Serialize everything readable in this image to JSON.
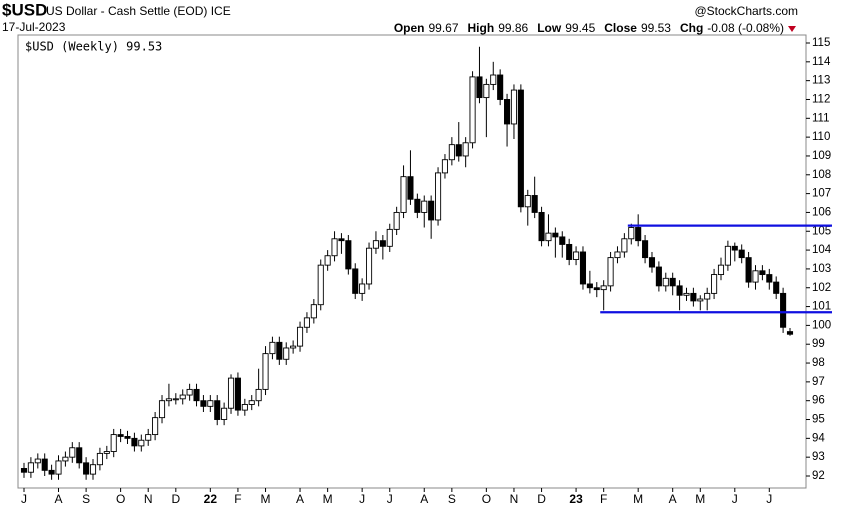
{
  "chart_data": {
    "type": "candlestick",
    "symbol": "$USD",
    "title": "US Dollar - Cash Settle (EOD) ICE",
    "source": "@StockCharts.com",
    "date": "17-Jul-2023",
    "header": [
      {
        "label": "Open",
        "value": "99.67"
      },
      {
        "label": "High",
        "value": "99.86"
      },
      {
        "label": "Low",
        "value": "99.45"
      },
      {
        "label": "Close",
        "value": "99.53"
      },
      {
        "label": "Chg",
        "value": "-0.08 (-0.08%)"
      }
    ],
    "legend": "$USD (Weekly) 99.53",
    "up_color": "#ffffff",
    "down_color": "#000000",
    "line_color": "#1010e0",
    "open": [
      92.4,
      92.2,
      92.7,
      92.9,
      92.3,
      92.1,
      92.8,
      93.0,
      93.5,
      92.7,
      92.1,
      92.6,
      93.2,
      93.3,
      94.2,
      94.1,
      94.0,
      93.6,
      93.9,
      94.2,
      95.1,
      96.0,
      96.1,
      96.1,
      96.3,
      96.6,
      96.0,
      95.7,
      96.0,
      95.0,
      95.6,
      97.2,
      95.5,
      95.8,
      96.0,
      96.6,
      98.5,
      99.1,
      98.2,
      98.8,
      98.9,
      99.9,
      100.4,
      101.1,
      103.2,
      103.7,
      104.6,
      104.5,
      103.0,
      101.7,
      102.2,
      104.1,
      104.5,
      104.2,
      105.1,
      106.0,
      107.9,
      106.7,
      106.0,
      106.6,
      105.6,
      108.1,
      108.8,
      109.6,
      109.0,
      109.7,
      113.2,
      112.1,
      112.8,
      113.3,
      112.0,
      110.7,
      112.5,
      106.3,
      106.9,
      106.0,
      104.5,
      104.9,
      104.7,
      104.3,
      103.5,
      103.9,
      102.2,
      102.0,
      101.9,
      102.1,
      103.6,
      103.9,
      104.6,
      105.2,
      104.5,
      103.6,
      103.1,
      102.1,
      102.5,
      102.1,
      101.6,
      101.7,
      101.3,
      101.4,
      101.7,
      102.7,
      103.2,
      104.2,
      104.0,
      103.6,
      102.3,
      102.9,
      102.7,
      102.3,
      101.7,
      99.67
    ],
    "high": [
      92.7,
      93.0,
      93.2,
      93.2,
      92.6,
      93.1,
      93.3,
      93.8,
      93.8,
      93.0,
      92.9,
      93.5,
      93.6,
      94.5,
      94.5,
      94.4,
      94.3,
      94.2,
      94.5,
      95.4,
      96.3,
      96.9,
      96.4,
      96.6,
      96.9,
      96.9,
      96.3,
      96.3,
      96.3,
      95.9,
      97.4,
      97.5,
      96.1,
      96.3,
      97.7,
      98.9,
      99.4,
      99.4,
      99.1,
      99.2,
      100.2,
      100.7,
      101.4,
      103.5,
      104.0,
      105.0,
      104.9,
      104.8,
      103.3,
      102.5,
      104.4,
      105.0,
      104.8,
      105.4,
      106.3,
      108.5,
      109.3,
      107.0,
      106.9,
      106.9,
      108.4,
      109.1,
      110.0,
      110.8,
      110.0,
      113.5,
      114.8,
      113.1,
      114.0,
      113.6,
      112.3,
      112.8,
      112.8,
      107.2,
      107.9,
      106.3,
      105.9,
      105.2,
      105.0,
      104.6,
      104.2,
      104.2,
      102.9,
      102.3,
      102.4,
      103.9,
      104.2,
      104.9,
      105.4,
      105.9,
      104.8,
      103.9,
      103.4,
      102.8,
      102.8,
      102.4,
      102.0,
      102.0,
      101.6,
      102.0,
      103.0,
      103.6,
      104.5,
      104.4,
      104.3,
      103.9,
      103.2,
      103.2,
      103.0,
      102.6,
      102.0,
      99.86
    ],
    "low": [
      91.9,
      91.9,
      92.4,
      92.0,
      91.8,
      91.8,
      92.5,
      92.7,
      92.4,
      91.8,
      91.8,
      92.3,
      92.9,
      93.0,
      93.8,
      93.7,
      93.3,
      93.3,
      93.6,
      93.9,
      94.8,
      95.7,
      95.8,
      95.8,
      96.0,
      95.7,
      95.4,
      95.4,
      94.7,
      94.7,
      95.3,
      95.2,
      95.2,
      95.5,
      95.7,
      96.3,
      98.2,
      97.9,
      97.9,
      98.5,
      98.6,
      99.6,
      100.1,
      100.8,
      102.9,
      103.4,
      103.8,
      102.7,
      101.4,
      101.3,
      101.9,
      103.8,
      103.5,
      103.9,
      104.8,
      105.7,
      106.4,
      105.7,
      105.2,
      104.6,
      105.3,
      107.8,
      108.5,
      108.7,
      108.4,
      109.4,
      111.8,
      110.0,
      112.5,
      111.7,
      109.5,
      109.9,
      106.0,
      105.3,
      105.7,
      104.2,
      104.2,
      103.6,
      103.6,
      103.2,
      103.2,
      101.9,
      101.7,
      101.5,
      100.8,
      101.8,
      103.3,
      103.6,
      104.3,
      104.2,
      103.3,
      102.8,
      101.8,
      101.8,
      101.6,
      100.8,
      101.3,
      101.0,
      100.8,
      100.8,
      101.4,
      102.4,
      102.9,
      103.4,
      103.3,
      102.0,
      101.9,
      102.4,
      101.9,
      101.4,
      99.6,
      99.45
    ],
    "close": [
      92.2,
      92.7,
      92.9,
      92.3,
      92.1,
      92.8,
      93.0,
      93.5,
      92.7,
      92.1,
      92.6,
      93.2,
      93.3,
      94.2,
      94.1,
      94.0,
      93.6,
      93.9,
      94.2,
      95.1,
      96.0,
      96.1,
      96.1,
      96.3,
      96.6,
      96.0,
      95.7,
      96.0,
      95.0,
      95.6,
      97.2,
      95.5,
      95.8,
      96.0,
      96.6,
      98.5,
      99.1,
      98.2,
      98.8,
      98.9,
      99.9,
      100.4,
      101.1,
      103.2,
      103.7,
      104.6,
      104.5,
      103.0,
      101.7,
      102.2,
      104.1,
      104.5,
      104.2,
      105.1,
      106.0,
      107.9,
      106.7,
      106.0,
      106.6,
      105.6,
      108.1,
      108.8,
      109.6,
      109.0,
      109.7,
      113.2,
      112.1,
      112.8,
      113.3,
      112.0,
      110.7,
      112.5,
      106.3,
      106.9,
      106.0,
      104.5,
      104.9,
      104.7,
      104.3,
      103.5,
      103.9,
      102.2,
      102.0,
      101.9,
      102.1,
      103.6,
      103.9,
      104.6,
      105.2,
      104.5,
      103.6,
      103.1,
      102.1,
      102.5,
      102.1,
      101.6,
      101.7,
      101.3,
      101.4,
      101.7,
      102.7,
      103.2,
      104.2,
      104.0,
      103.6,
      102.3,
      102.9,
      102.7,
      102.3,
      101.7,
      99.9,
      99.53
    ],
    "xlim": [
      -0.5,
      111.5
    ],
    "xticks": [
      {
        "value": 0,
        "label": "J"
      },
      {
        "value": 5,
        "label": "A"
      },
      {
        "value": 9,
        "label": "S"
      },
      {
        "value": 14,
        "label": "O"
      },
      {
        "value": 18,
        "label": "N"
      },
      {
        "value": 22,
        "label": "D"
      },
      {
        "value": 27,
        "label": "22"
      },
      {
        "value": 31,
        "label": "F"
      },
      {
        "value": 35,
        "label": "M"
      },
      {
        "value": 40,
        "label": "A"
      },
      {
        "value": 44,
        "label": "M"
      },
      {
        "value": 49,
        "label": "J"
      },
      {
        "value": 53,
        "label": "J"
      },
      {
        "value": 58,
        "label": "A"
      },
      {
        "value": 62,
        "label": "S"
      },
      {
        "value": 67,
        "label": "O"
      },
      {
        "value": 71,
        "label": "N"
      },
      {
        "value": 75,
        "label": "D"
      },
      {
        "value": 80,
        "label": "23"
      },
      {
        "value": 84,
        "label": "F"
      },
      {
        "value": 89,
        "label": "M"
      },
      {
        "value": 94,
        "label": "A"
      },
      {
        "value": 98,
        "label": "M"
      },
      {
        "value": 103,
        "label": "J"
      },
      {
        "value": 108,
        "label": "J"
      }
    ],
    "ylim": [
      91.6,
      115.4
    ],
    "yticks": [
      92,
      93,
      94,
      95,
      96,
      97,
      98,
      99,
      100,
      101,
      102,
      103,
      104,
      105,
      106,
      107,
      108,
      109,
      110,
      111,
      112,
      113,
      114,
      115
    ],
    "levels": [
      {
        "value": 105.3,
        "from": 87.5
      },
      {
        "value": 100.7,
        "from": 83.5
      }
    ]
  }
}
